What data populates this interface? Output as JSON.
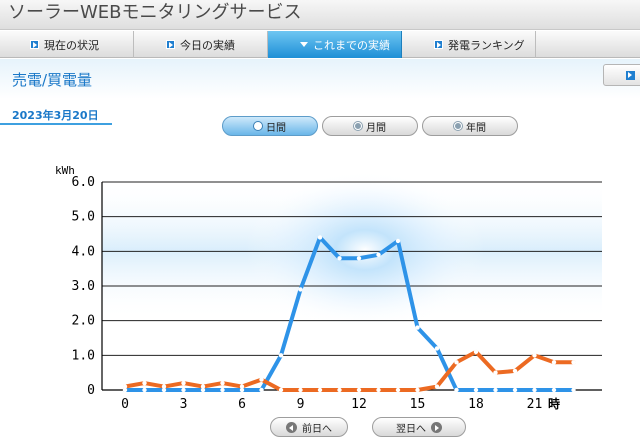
{
  "app": {
    "title": "ソーラーWEBモニタリングサービス"
  },
  "nav": {
    "tabs": [
      {
        "label": "現在の状況",
        "active": false
      },
      {
        "label": "今日の実績",
        "active": false
      },
      {
        "label": "これまでの実績",
        "active": true
      },
      {
        "label": "発電ランキング",
        "active": false
      }
    ]
  },
  "section": {
    "title": "売電/買電量"
  },
  "date": "2023年3月20日",
  "period_tabs": [
    {
      "label": "日間",
      "active": true
    },
    {
      "label": "月間",
      "active": false
    },
    {
      "label": "年間",
      "active": false
    }
  ],
  "buttons": {
    "prev_day": "前日へ",
    "next_day": "翌日へ"
  },
  "colors": {
    "sell": "#2e93e8",
    "buy": "#ec6a22",
    "accent": "#1a78c8"
  },
  "chart_data": {
    "type": "line",
    "ylabel": "kWh",
    "xlabel": "時",
    "ylim": [
      0,
      6
    ],
    "y_ticks": [
      "0",
      "1.0",
      "2.0",
      "3.0",
      "4.0",
      "5.0",
      "6.0"
    ],
    "x_ticks": [
      {
        "hour": 0,
        "label": "0"
      },
      {
        "hour": 3,
        "label": "3"
      },
      {
        "hour": 6,
        "label": "6"
      },
      {
        "hour": 9,
        "label": "9"
      },
      {
        "hour": 12,
        "label": "12"
      },
      {
        "hour": 15,
        "label": "15"
      },
      {
        "hour": 18,
        "label": "18"
      },
      {
        "hour": 21,
        "label": "21"
      }
    ],
    "x": [
      0,
      1,
      2,
      3,
      4,
      5,
      6,
      7,
      8,
      9,
      10,
      11,
      12,
      13,
      14,
      15,
      16,
      17,
      18,
      19,
      20,
      21,
      22,
      23
    ],
    "series": [
      {
        "color": "#2e93e8",
        "values": [
          0,
          0,
          0,
          0,
          0,
          0,
          0,
          0,
          1.0,
          2.9,
          4.4,
          3.8,
          3.8,
          3.9,
          4.3,
          1.8,
          1.2,
          0,
          0,
          0,
          0,
          0,
          0,
          0
        ]
      },
      {
        "color": "#ec6a22",
        "values": [
          0.1,
          0.2,
          0.1,
          0.2,
          0.1,
          0.2,
          0.1,
          0.3,
          0,
          0,
          0,
          0,
          0,
          0,
          0,
          0,
          0.1,
          0.8,
          1.1,
          0.5,
          0.55,
          1.0,
          0.8,
          0.8
        ]
      }
    ],
    "grid": true
  }
}
